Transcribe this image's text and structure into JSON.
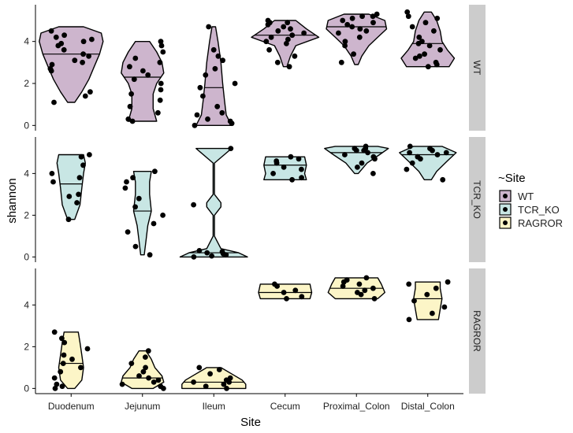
{
  "chart_data": {
    "type": "violin",
    "xlabel": "Site",
    "ylabel": "shannon",
    "categories": [
      "Duodenum",
      "Jejunum",
      "Ileum",
      "Cecum",
      "Proximal_Colon",
      "Distal_Colon"
    ],
    "y_ticks": [
      0,
      2,
      4
    ],
    "ylim": [
      -0.25,
      5.75
    ],
    "legend": {
      "title": "~Site",
      "position": "right",
      "entries": [
        {
          "label": "WT",
          "color": "#cdb5cd"
        },
        {
          "label": "TCR_KO",
          "color": "#c8e6e4"
        },
        {
          "label": "RAGROR",
          "color": "#fcf5c7"
        }
      ]
    },
    "facets": [
      {
        "label": "WT",
        "color": "#cdb5cd",
        "violins": [
          {
            "category": "Duodenum",
            "median": 3.4,
            "profile": [
              [
                1.1,
                0.1
              ],
              [
                1.6,
                0.3
              ],
              [
                2.2,
                0.5
              ],
              [
                2.8,
                0.65
              ],
              [
                3.4,
                0.8
              ],
              [
                4.0,
                0.9
              ],
              [
                4.4,
                0.85
              ],
              [
                4.7,
                0.35
              ]
            ],
            "points": [
              1.1,
              1.4,
              1.6,
              2.6,
              2.7,
              2.9,
              3.0,
              3.1,
              3.3,
              3.4,
              3.6,
              3.8,
              3.9,
              4.0,
              4.1,
              4.2,
              4.3,
              4.5
            ]
          },
          {
            "category": "Jejunum",
            "median": 2.3,
            "profile": [
              [
                0.2,
                0.4
              ],
              [
                0.8,
                0.3
              ],
              [
                1.5,
                0.3
              ],
              [
                2.0,
                0.4
              ],
              [
                2.5,
                0.6
              ],
              [
                3.0,
                0.55
              ],
              [
                3.5,
                0.4
              ],
              [
                4.0,
                0.2
              ]
            ],
            "points": [
              0.2,
              0.3,
              0.6,
              0.9,
              1.2,
              1.5,
              1.7,
              2.0,
              2.2,
              2.4,
              2.6,
              2.8,
              3.0,
              3.2,
              3.5,
              3.8,
              4.0
            ]
          },
          {
            "category": "Ileum",
            "median": 1.8,
            "profile": [
              [
                0.0,
                0.5
              ],
              [
                0.5,
                0.35
              ],
              [
                1.2,
                0.3
              ],
              [
                2.0,
                0.25
              ],
              [
                3.0,
                0.2
              ],
              [
                4.0,
                0.12
              ],
              [
                4.7,
                0.05
              ]
            ],
            "points": [
              0.0,
              0.1,
              0.2,
              0.3,
              0.5,
              0.6,
              0.9,
              1.4,
              1.8,
              2.0,
              2.4,
              2.7,
              3.1,
              3.3,
              3.6,
              4.7
            ]
          },
          {
            "category": "Cecum",
            "median": 4.3,
            "profile": [
              [
                2.8,
                0.05
              ],
              [
                3.3,
                0.15
              ],
              [
                3.8,
                0.3
              ],
              [
                4.2,
                0.95
              ],
              [
                4.6,
                0.6
              ],
              [
                5.0,
                0.3
              ]
            ],
            "points": [
              2.8,
              3.0,
              3.3,
              3.6,
              3.9,
              4.0,
              4.1,
              4.2,
              4.3,
              4.4,
              4.5,
              4.6,
              4.7,
              4.8,
              4.9,
              4.9,
              5.0
            ]
          },
          {
            "category": "Proximal_Colon",
            "median": 4.7,
            "profile": [
              [
                2.9,
                0.05
              ],
              [
                3.3,
                0.15
              ],
              [
                3.8,
                0.35
              ],
              [
                4.2,
                0.6
              ],
              [
                4.6,
                0.85
              ],
              [
                5.0,
                0.8
              ],
              [
                5.3,
                0.35
              ]
            ],
            "points": [
              3.0,
              3.4,
              3.8,
              4.0,
              4.2,
              4.4,
              4.5,
              4.6,
              4.7,
              4.8,
              4.9,
              5.0,
              5.1,
              5.2,
              5.2,
              5.3
            ]
          },
          {
            "category": "Distal_Colon",
            "median": 3.9,
            "profile": [
              [
                2.8,
                0.6
              ],
              [
                3.2,
                0.75
              ],
              [
                3.6,
                0.55
              ],
              [
                4.0,
                0.4
              ],
              [
                4.5,
                0.35
              ],
              [
                5.0,
                0.25
              ],
              [
                5.4,
                0.1
              ]
            ],
            "points": [
              2.8,
              2.9,
              3.0,
              3.2,
              3.3,
              3.4,
              3.6,
              3.8,
              3.9,
              4.0,
              4.2,
              4.5,
              4.7,
              4.9,
              5.1,
              5.2,
              5.4
            ]
          }
        ]
      },
      {
        "label": "TCR_KO",
        "color": "#c8e6e4",
        "violins": [
          {
            "category": "Duodenum",
            "median": 3.5,
            "profile": [
              [
                1.8,
                0.1
              ],
              [
                2.5,
                0.25
              ],
              [
                3.3,
                0.3
              ],
              [
                4.0,
                0.35
              ],
              [
                4.5,
                0.4
              ],
              [
                4.9,
                0.35
              ]
            ],
            "points": [
              1.8,
              2.6,
              2.9,
              3.0,
              3.6,
              3.8,
              4.0,
              4.4,
              4.8,
              4.9
            ]
          },
          {
            "category": "Jejunum",
            "median": 2.2,
            "profile": [
              [
                0.1,
                0.05
              ],
              [
                0.8,
                0.1
              ],
              [
                1.5,
                0.15
              ],
              [
                2.2,
                0.25
              ],
              [
                3.0,
                0.2
              ],
              [
                3.6,
                0.2
              ],
              [
                4.1,
                0.25
              ]
            ],
            "points": [
              0.1,
              0.5,
              1.2,
              1.6,
              2.0,
              2.4,
              2.8,
              3.3,
              3.6,
              3.8,
              4.1
            ]
          },
          {
            "category": "Ileum",
            "median": 0.2,
            "profile": [
              [
                0.0,
                0.95
              ],
              [
                0.2,
                0.7
              ],
              [
                0.4,
                0.2
              ],
              [
                1.0,
                0.02
              ],
              [
                2.0,
                0.02
              ],
              [
                2.4,
                0.2
              ],
              [
                2.6,
                0.2
              ],
              [
                3.0,
                0.02
              ],
              [
                4.5,
                0.02
              ],
              [
                5.2,
                0.5
              ]
            ],
            "points": [
              0.0,
              0.05,
              0.1,
              0.15,
              0.2,
              0.25,
              0.3,
              2.5,
              5.2
            ]
          },
          {
            "category": "Cecum",
            "median": 4.4,
            "profile": [
              [
                3.7,
                0.6
              ],
              [
                4.0,
                0.55
              ],
              [
                4.4,
                0.6
              ],
              [
                4.8,
                0.55
              ]
            ],
            "points": [
              3.7,
              3.8,
              4.0,
              4.2,
              4.3,
              4.5,
              4.6,
              4.7,
              4.8
            ]
          },
          {
            "category": "Proximal_Colon",
            "median": 5.0,
            "profile": [
              [
                4.0,
                0.05
              ],
              [
                4.5,
                0.3
              ],
              [
                4.9,
                0.65
              ],
              [
                5.2,
                0.9
              ],
              [
                5.3,
                0.6
              ]
            ],
            "points": [
              4.0,
              4.3,
              4.5,
              4.7,
              4.8,
              4.9,
              5.0,
              5.1,
              5.1,
              5.2,
              5.2,
              5.3
            ]
          },
          {
            "category": "Distal_Colon",
            "median": 4.9,
            "profile": [
              [
                3.7,
                0.1
              ],
              [
                4.1,
                0.25
              ],
              [
                4.6,
                0.55
              ],
              [
                5.0,
                0.8
              ],
              [
                5.3,
                0.4
              ]
            ],
            "points": [
              3.7,
              4.2,
              4.5,
              4.7,
              4.8,
              4.9,
              5.0,
              5.0,
              5.1,
              5.2,
              5.3
            ]
          }
        ]
      },
      {
        "label": "RAGROR",
        "color": "#fcf5c7",
        "violins": [
          {
            "category": "Duodenum",
            "median": 1.2,
            "profile": [
              [
                0.0,
                0.1
              ],
              [
                0.4,
                0.3
              ],
              [
                1.0,
                0.35
              ],
              [
                1.6,
                0.3
              ],
              [
                2.2,
                0.25
              ],
              [
                2.7,
                0.2
              ]
            ],
            "points": [
              0.0,
              0.1,
              0.2,
              0.5,
              0.8,
              1.0,
              1.2,
              1.4,
              1.6,
              1.9,
              2.2,
              2.4,
              2.7
            ]
          },
          {
            "category": "Jejunum",
            "median": 0.5,
            "profile": [
              [
                0.0,
                0.3
              ],
              [
                0.3,
                0.6
              ],
              [
                0.6,
                0.55
              ],
              [
                1.0,
                0.35
              ],
              [
                1.4,
                0.25
              ],
              [
                1.8,
                0.1
              ]
            ],
            "points": [
              0.0,
              0.1,
              0.2,
              0.3,
              0.4,
              0.5,
              0.6,
              0.8,
              1.0,
              1.2,
              1.5,
              1.8
            ]
          },
          {
            "category": "Ileum",
            "median": 0.3,
            "profile": [
              [
                0.0,
                0.9
              ],
              [
                0.2,
                0.9
              ],
              [
                0.4,
                0.8
              ],
              [
                0.7,
                0.5
              ],
              [
                1.0,
                0.2
              ]
            ],
            "points": [
              0.0,
              0.1,
              0.2,
              0.3,
              0.3,
              0.4,
              0.5,
              0.7,
              0.9,
              1.0
            ]
          },
          {
            "category": "Cecum",
            "median": 4.6,
            "profile": [
              [
                4.3,
                0.7
              ],
              [
                4.6,
                0.75
              ],
              [
                5.0,
                0.7
              ]
            ],
            "points": [
              4.3,
              4.4,
              4.6,
              4.7,
              4.9,
              5.0
            ]
          },
          {
            "category": "Proximal_Colon",
            "median": 4.8,
            "profile": [
              [
                4.3,
                0.6
              ],
              [
                4.6,
                0.8
              ],
              [
                5.0,
                0.7
              ],
              [
                5.3,
                0.6
              ]
            ],
            "points": [
              4.3,
              4.5,
              4.6,
              4.7,
              4.8,
              4.9,
              5.0,
              5.1,
              5.2,
              5.3
            ]
          },
          {
            "category": "Distal_Colon",
            "median": 4.3,
            "profile": [
              [
                3.3,
                0.3
              ],
              [
                3.8,
                0.35
              ],
              [
                4.3,
                0.4
              ],
              [
                4.8,
                0.35
              ],
              [
                5.1,
                0.35
              ]
            ],
            "points": [
              3.3,
              3.6,
              3.9,
              4.2,
              4.5,
              4.8,
              5.0,
              5.1
            ]
          }
        ]
      }
    ]
  }
}
